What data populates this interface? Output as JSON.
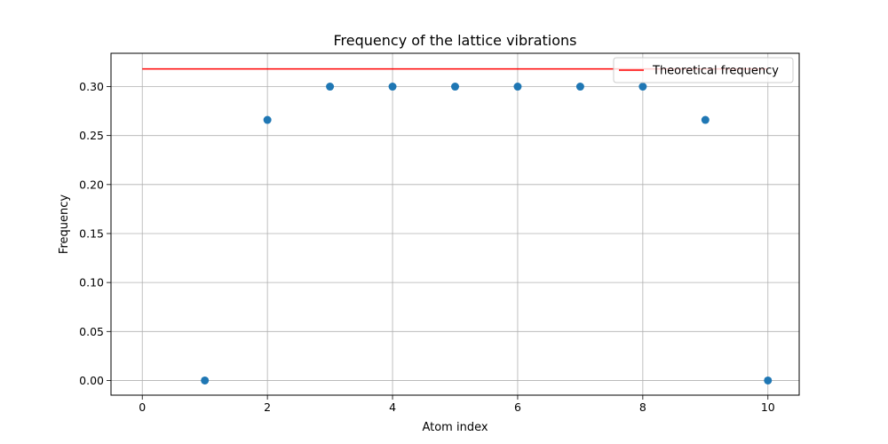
{
  "chart_data": {
    "type": "scatter",
    "title": "Frequency of the lattice vibrations",
    "xlabel": "Atom index",
    "ylabel": "Frequency",
    "xlim": [
      -0.5,
      10.5
    ],
    "ylim": [
      -0.015,
      0.334
    ],
    "xticks": [
      0,
      2,
      4,
      6,
      8,
      10
    ],
    "xtick_labels": [
      "0",
      "2",
      "4",
      "6",
      "8",
      "10"
    ],
    "yticks": [
      0.0,
      0.05,
      0.1,
      0.15,
      0.2,
      0.25,
      0.3
    ],
    "ytick_labels": [
      "0.00",
      "0.05",
      "0.10",
      "0.15",
      "0.20",
      "0.25",
      "0.30"
    ],
    "grid": true,
    "legend_position": "top-right",
    "series": [
      {
        "kind": "scatter",
        "color": "#1f77b4",
        "x": [
          1,
          2,
          3,
          4,
          5,
          6,
          7,
          8,
          9,
          10
        ],
        "y": [
          0.0,
          0.266,
          0.3,
          0.3,
          0.3,
          0.3,
          0.3,
          0.3,
          0.266,
          0.0
        ]
      },
      {
        "kind": "line",
        "name": "Theoretical frequency",
        "color": "#ff0000",
        "x": [
          0,
          10
        ],
        "y": [
          0.318,
          0.318
        ]
      }
    ]
  }
}
